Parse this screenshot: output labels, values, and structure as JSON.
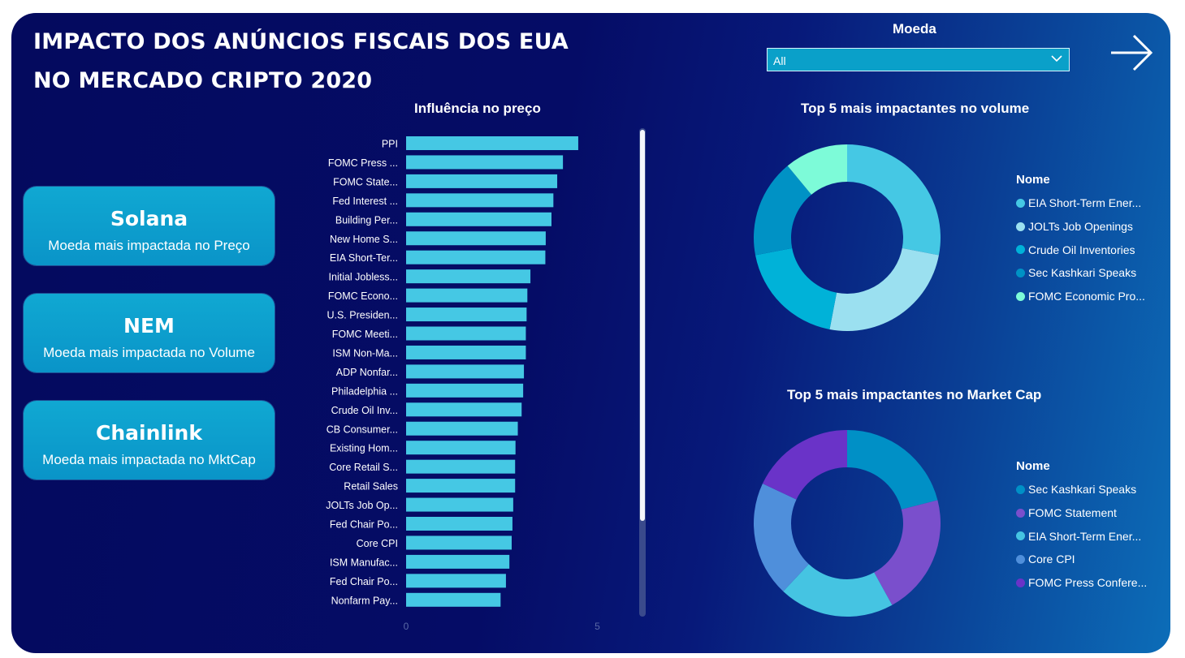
{
  "title_line1": "IMPACTO DOS ANÚNCIOS FISCAIS DOS EUA",
  "title_line2": "NO MERCADO CRIPTO 2020",
  "slicer": {
    "label": "Moeda",
    "value": "All"
  },
  "cards": [
    {
      "big": "Solana",
      "small": "Moeda mais impactada no Preço"
    },
    {
      "big": "NEM",
      "small": "Moeda mais impactada no Volume"
    },
    {
      "big": "Chainlink",
      "small": "Moeda mais impactada no MktCap"
    }
  ],
  "icons": {
    "next": "arrow-right-icon",
    "dropdown": "chevron-down-icon"
  },
  "colors": {
    "bar": "#45c8e4",
    "background_dark": "#040a5e",
    "card": "#0aa0c9"
  },
  "chart_data": [
    {
      "type": "bar",
      "orientation": "horizontal",
      "title": "Influência no preço",
      "categories": [
        "PPI",
        "FOMC Press ...",
        "FOMC State...",
        "Fed Interest ...",
        "Building Per...",
        "New Home S...",
        "EIA Short-Ter...",
        "Initial Jobless...",
        "FOMC Econo...",
        "U.S. Presiden...",
        "FOMC Meeti...",
        "ISM Non-Ma...",
        "ADP Nonfar...",
        "Philadelphia ...",
        "Crude Oil Inv...",
        "CB Consumer...",
        "Existing Hom...",
        "Core Retail S...",
        "Retail Sales",
        "JOLTs Job Op...",
        "Fed Chair Po...",
        "Core CPI",
        "ISM Manufac...",
        "Fed Chair Po...",
        "Nonfarm Pay..."
      ],
      "values": [
        4.5,
        4.1,
        3.95,
        3.85,
        3.8,
        3.65,
        3.64,
        3.25,
        3.17,
        3.15,
        3.13,
        3.13,
        3.08,
        3.06,
        3.02,
        2.92,
        2.86,
        2.85,
        2.85,
        2.8,
        2.78,
        2.76,
        2.7,
        2.61,
        2.47
      ],
      "xlim": [
        0,
        5
      ],
      "x_ticks": [
        "0",
        "5"
      ]
    },
    {
      "type": "pie",
      "donut": true,
      "title": "Top 5 mais impactantes no volume",
      "legend_title": "Nome",
      "legend_position": "right",
      "slices": [
        {
          "name": "EIA Short-Term Ener...",
          "value": 28,
          "color": "#45c8e4"
        },
        {
          "name": "JOLTs Job Openings",
          "value": 25,
          "color": "#9be0f0"
        },
        {
          "name": "Crude Oil Inventories",
          "value": 19,
          "color": "#00b2d8"
        },
        {
          "name": "Sec Kashkari Speaks",
          "value": 17,
          "color": "#0092c5"
        },
        {
          "name": "FOMC Economic Pro...",
          "value": 11,
          "color": "#7dfbd8"
        }
      ]
    },
    {
      "type": "pie",
      "donut": true,
      "title": "Top 5 mais impactantes no Market Cap",
      "legend_title": "Nome",
      "legend_position": "right",
      "slices": [
        {
          "name": "Sec Kashkari Speaks",
          "value": 21,
          "color": "#0090c6"
        },
        {
          "name": "FOMC Statement",
          "value": 21,
          "color": "#7a4fcc"
        },
        {
          "name": "EIA Short-Term Ener...",
          "value": 20,
          "color": "#45c4e2"
        },
        {
          "name": "Core CPI",
          "value": 20,
          "color": "#4f8fdb"
        },
        {
          "name": "FOMC Press Confere...",
          "value": 18,
          "color": "#6a33c8"
        }
      ]
    }
  ]
}
